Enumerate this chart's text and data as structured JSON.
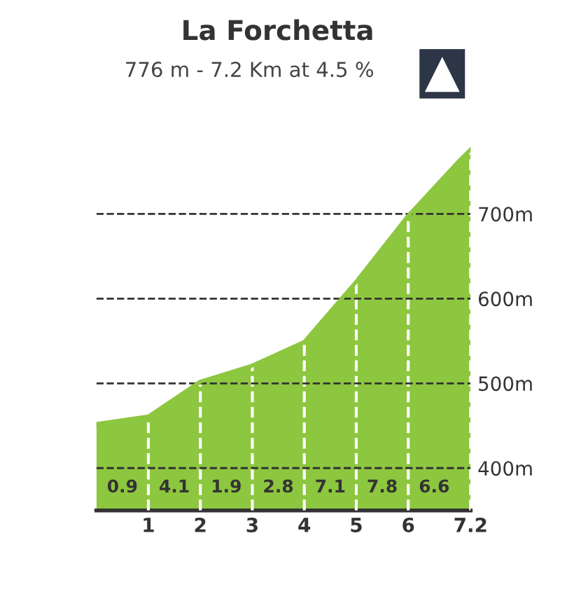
{
  "chart_data": {
    "type": "area",
    "title": "La Forchetta",
    "subtitle": "776 m - 7.2 Km at 4.5 %",
    "x": [
      0,
      1,
      2,
      3,
      4,
      5,
      6,
      7,
      7.2
    ],
    "series": [
      {
        "color": "#8dc63f",
        "values": [
          452,
          461,
          502,
          521,
          549,
          620,
          698,
          764,
          776
        ]
      }
    ],
    "xlim": [
      0,
      7.2
    ],
    "xticks": [
      1,
      2,
      3,
      4,
      5,
      6,
      7.2
    ],
    "ylim": [
      350,
      800
    ],
    "yticks": [
      {
        "value": 400,
        "label": "400m"
      },
      {
        "value": 500,
        "label": "500m"
      },
      {
        "value": 600,
        "label": "600m"
      },
      {
        "value": 700,
        "label": "700m"
      }
    ],
    "grid": true,
    "annotations": [
      "0.9",
      "4.1",
      "1.9",
      "2.8",
      "7.1",
      "7.8",
      "6.6"
    ]
  }
}
